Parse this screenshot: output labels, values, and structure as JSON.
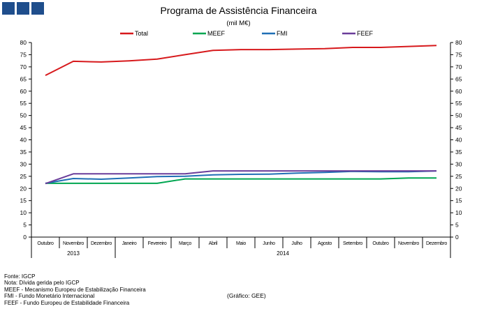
{
  "header": {
    "logo": "blue-square-logo",
    "title": "Programa de Assistência Financeira",
    "subtitle": "(mil M€)"
  },
  "chart_data": {
    "type": "line",
    "title": "Programa de Assistência Financeira",
    "subtitle": "(mil M€)",
    "xlabel": "",
    "ylabel": "",
    "ylim": [
      0,
      80
    ],
    "yticks": [
      0,
      5,
      10,
      15,
      20,
      25,
      30,
      35,
      40,
      45,
      50,
      55,
      60,
      65,
      70,
      75,
      80
    ],
    "grid": false,
    "legend_position": "top",
    "categories": [
      "Outubro",
      "Novembro",
      "Dezembro",
      "Janeiro",
      "Fevereiro",
      "Março",
      "Abril",
      "Maio",
      "Junho",
      "Julho",
      "Agosto",
      "Setembro",
      "Outubro",
      "Novembro",
      "Dezembro"
    ],
    "year_groups": [
      {
        "label": "2013",
        "count": 3
      },
      {
        "label": "2014",
        "count": 12
      }
    ],
    "series": [
      {
        "name": "Total",
        "color": "#d7191c",
        "values": [
          66.5,
          72.3,
          72.0,
          72.5,
          73.2,
          75.0,
          76.8,
          77.1,
          77.1,
          77.3,
          77.5,
          78.0,
          78.0,
          78.4,
          78.8
        ]
      },
      {
        "name": "MEEF",
        "color": "#00a651",
        "values": [
          22.1,
          22.1,
          22.1,
          22.1,
          22.1,
          23.9,
          23.9,
          23.9,
          23.9,
          23.9,
          23.9,
          23.9,
          23.9,
          24.3,
          24.3
        ]
      },
      {
        "name": "FMI",
        "color": "#1f6fb5",
        "values": [
          22.1,
          24.1,
          23.8,
          24.3,
          24.9,
          25.0,
          25.6,
          25.8,
          25.9,
          26.3,
          26.6,
          27.0,
          26.9,
          26.9,
          27.2
        ]
      },
      {
        "name": "FEEF",
        "color": "#6a3d9a",
        "values": [
          22.0,
          26.0,
          26.0,
          26.0,
          26.0,
          26.0,
          27.2,
          27.2,
          27.2,
          27.2,
          27.2,
          27.2,
          27.2,
          27.2,
          27.2
        ]
      }
    ]
  },
  "footnotes": [
    "Fonte: IGCP",
    "Nota: Dívida gerida pelo IGCP",
    "MEEF - Mecanismo Europeu de Estabilização Financeira",
    "FMI - Fundo Monetário Internacional",
    "FEEF - Fundo Europeu de Estabilidade Financeira"
  ],
  "credit": "(Gráfico: GEE)"
}
